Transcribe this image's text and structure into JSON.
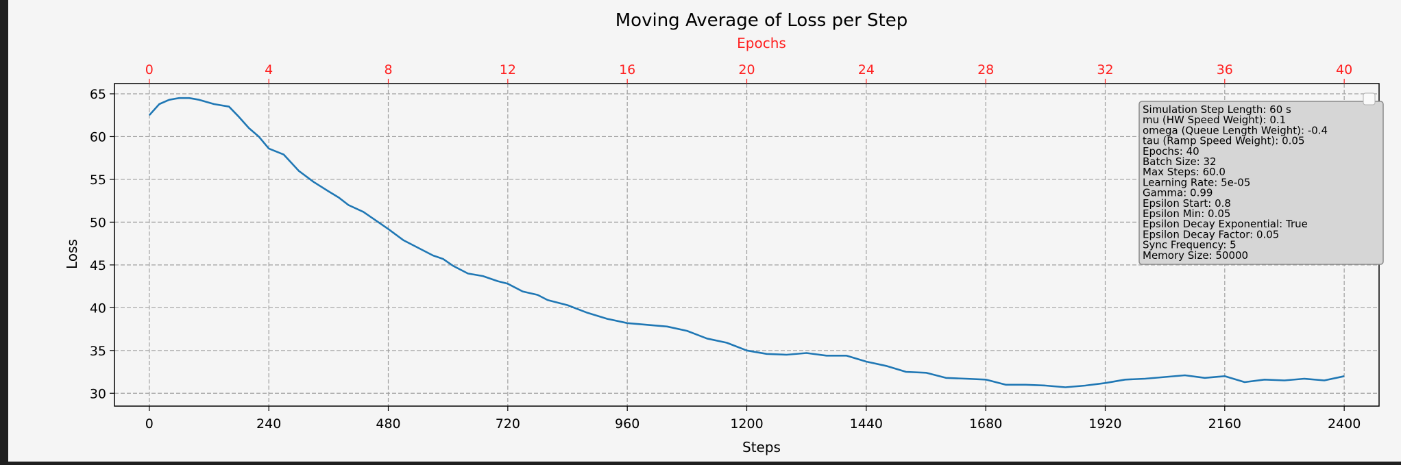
{
  "chart_data": {
    "type": "line",
    "title": "Moving Average of Loss per Step",
    "xlabel": "Steps",
    "ylabel": "Loss",
    "x2label": "Epochs",
    "xlim": [
      -70,
      2470
    ],
    "ylim": [
      28.5,
      66.2
    ],
    "x_ticks": [
      0,
      240,
      480,
      720,
      960,
      1200,
      1440,
      1680,
      1920,
      2160,
      2400
    ],
    "y_ticks": [
      30,
      35,
      40,
      45,
      50,
      55,
      60,
      65
    ],
    "x2_ticks": [
      0,
      4,
      8,
      12,
      16,
      20,
      24,
      28,
      32,
      36,
      40
    ],
    "grid": true,
    "legend_placement": "upper right",
    "colors": {
      "line": "#1f77b4",
      "secondary_axis": "#ff2020",
      "grid": "#a0a0a0",
      "legend_bg": "#d6d6d6"
    },
    "series": [
      {
        "x": [
          0,
          20,
          40,
          60,
          80,
          100,
          130,
          160,
          180,
          200,
          220,
          240,
          270,
          300,
          330,
          360,
          380,
          400,
          430,
          460,
          480,
          510,
          540,
          570,
          590,
          610,
          640,
          670,
          700,
          720,
          750,
          780,
          800,
          840,
          880,
          920,
          960,
          1000,
          1040,
          1080,
          1120,
          1160,
          1200,
          1240,
          1280,
          1320,
          1360,
          1400,
          1440,
          1480,
          1520,
          1560,
          1600,
          1640,
          1680,
          1720,
          1760,
          1800,
          1840,
          1880,
          1920,
          1960,
          2000,
          2040,
          2080,
          2120,
          2160,
          2200,
          2240,
          2280,
          2320,
          2360,
          2400
        ],
        "values": [
          62.5,
          63.8,
          64.3,
          64.5,
          64.5,
          64.3,
          63.8,
          63.5,
          62.3,
          61.0,
          60.0,
          58.6,
          57.9,
          56.0,
          54.7,
          53.6,
          52.9,
          52.0,
          51.2,
          50.0,
          49.2,
          47.9,
          47.0,
          46.1,
          45.7,
          44.9,
          44.0,
          43.7,
          43.1,
          42.8,
          41.9,
          41.5,
          40.9,
          40.3,
          39.4,
          38.7,
          38.2,
          38.0,
          37.8,
          37.3,
          36.4,
          35.9,
          35.0,
          34.6,
          34.5,
          34.7,
          34.4,
          34.4,
          33.7,
          33.2,
          32.5,
          32.4,
          31.8,
          31.7,
          31.6,
          31.0,
          31.0,
          30.9,
          30.7,
          30.9,
          31.2,
          31.6,
          31.7,
          31.9,
          32.1,
          31.8,
          32.0,
          31.3,
          31.6,
          31.5,
          31.7,
          31.5,
          32.0
        ]
      }
    ],
    "legend_text": [
      "Simulation Step Length: 60 s",
      "mu (HW Speed Weight): 0.1",
      "omega (Queue Length Weight): -0.4",
      "tau (Ramp Speed Weight): 0.05",
      "Epochs: 40",
      "Batch Size: 32",
      "Max Steps: 60.0",
      "Learning Rate: 5e-05",
      "Gamma: 0.99",
      "Epsilon Start: 0.8",
      "Epsilon Min: 0.05",
      "Epsilon Decay Exponential: True",
      "Epsilon Decay Factor: 0.05",
      "Sync Frequency: 5",
      "Memory Size: 50000"
    ]
  }
}
